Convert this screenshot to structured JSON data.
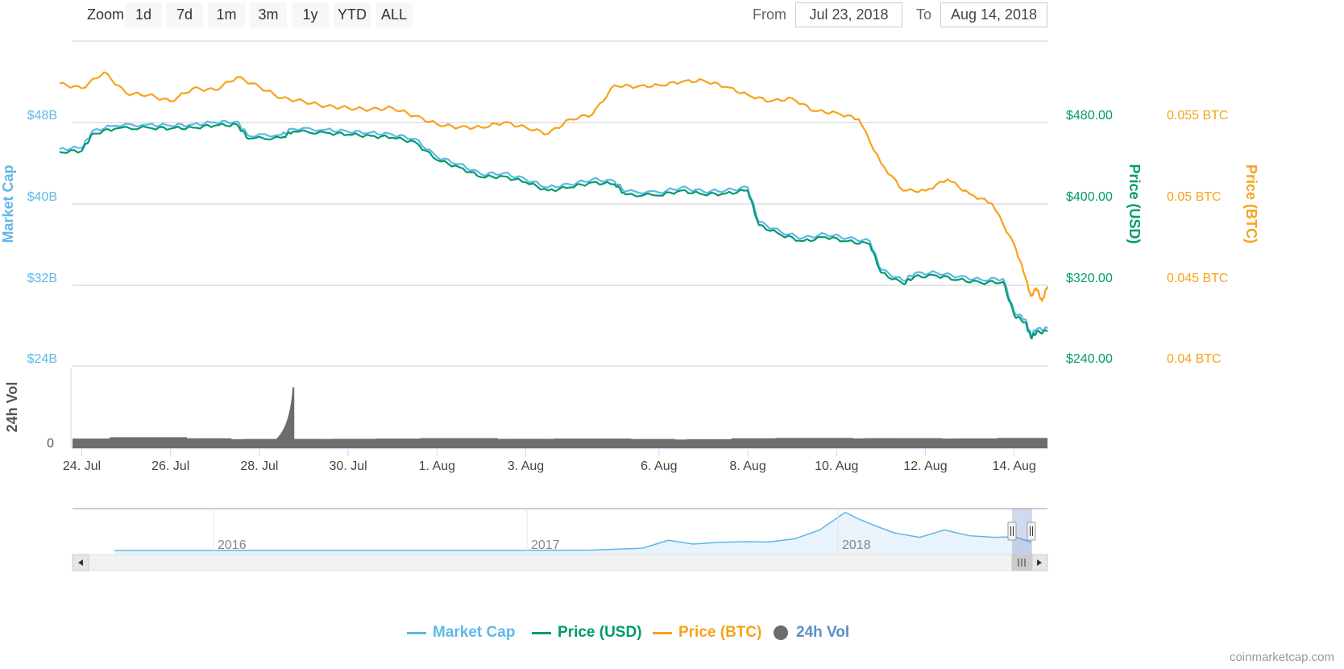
{
  "toolbar": {
    "zoom_label": "Zoom",
    "zoom_buttons": [
      "1d",
      "7d",
      "1m",
      "3m",
      "1y",
      "YTD",
      "ALL"
    ],
    "from_label": "From",
    "from_value": "Jul 23, 2018",
    "to_label": "To",
    "to_value": "Aug 14, 2018"
  },
  "colors": {
    "market_cap": "#5eb8e8",
    "price_usd": "#009a6e",
    "price_btc": "#f7a21b",
    "volume": "#6d6d6d",
    "grid": "#e6e6e6"
  },
  "legend": [
    "Market Cap",
    "Price (USD)",
    "Price (BTC)",
    "24h Vol"
  ],
  "credits": "coinmarketcap.com",
  "chart_data": {
    "type": "line",
    "x_ticks": [
      "24. Jul",
      "26. Jul",
      "28. Jul",
      "30. Jul",
      "1. Aug",
      "3. Aug",
      "6. Aug",
      "8. Aug",
      "10. Aug",
      "12. Aug",
      "14. Aug"
    ],
    "axes": {
      "market_cap": {
        "label": "Market Cap",
        "ticks": [
          "$48B",
          "$40B",
          "$32B",
          "$24B"
        ],
        "range": [
          24,
          48
        ]
      },
      "price_usd": {
        "label": "Price (USD)",
        "ticks": [
          "$480.00",
          "$400.00",
          "$320.00",
          "$240.00"
        ],
        "range": [
          240,
          480
        ]
      },
      "price_btc": {
        "label": "Price (BTC)",
        "ticks": [
          "0.055 BTC",
          "0.05 BTC",
          "0.045 BTC",
          "0.04 BTC"
        ],
        "range": [
          0.04,
          0.055
        ]
      },
      "volume": {
        "label": "24h Vol",
        "ticks": [
          "0"
        ]
      }
    },
    "series": [
      {
        "name": "Price (BTC)",
        "axis": "price_btc",
        "points": [
          [
            "2018-07-23T12",
            0.0574
          ],
          [
            "2018-07-24T00",
            0.0571
          ],
          [
            "2018-07-24T12",
            0.0581
          ],
          [
            "2018-07-25T00",
            0.0568
          ],
          [
            "2018-07-25T12",
            0.0567
          ],
          [
            "2018-07-26T00",
            0.0563
          ],
          [
            "2018-07-26T12",
            0.0571
          ],
          [
            "2018-07-27T00",
            0.057
          ],
          [
            "2018-07-27T12",
            0.0578
          ],
          [
            "2018-07-28T00",
            0.0572
          ],
          [
            "2018-07-28T12",
            0.0565
          ],
          [
            "2018-07-29T00",
            0.0563
          ],
          [
            "2018-07-29T12",
            0.056
          ],
          [
            "2018-07-30T00",
            0.0559
          ],
          [
            "2018-07-30T12",
            0.0558
          ],
          [
            "2018-07-31T00",
            0.0559
          ],
          [
            "2018-07-31T12",
            0.0554
          ],
          [
            "2018-08-01T00",
            0.0549
          ],
          [
            "2018-08-01T12",
            0.0547
          ],
          [
            "2018-08-02T00",
            0.0547
          ],
          [
            "2018-08-02T12",
            0.055
          ],
          [
            "2018-08-03T00",
            0.0547
          ],
          [
            "2018-08-03T12",
            0.0543
          ],
          [
            "2018-08-04T00",
            0.0552
          ],
          [
            "2018-08-04T12",
            0.0555
          ],
          [
            "2018-08-05T00",
            0.0573
          ],
          [
            "2018-08-05T12",
            0.0572
          ],
          [
            "2018-08-06T00",
            0.0573
          ],
          [
            "2018-08-06T12",
            0.0575
          ],
          [
            "2018-08-07T00",
            0.0576
          ],
          [
            "2018-08-07T12",
            0.0572
          ],
          [
            "2018-08-08T00",
            0.0567
          ],
          [
            "2018-08-08T12",
            0.0563
          ],
          [
            "2018-08-09T00",
            0.0565
          ],
          [
            "2018-08-09T12",
            0.0557
          ],
          [
            "2018-08-10T00",
            0.0556
          ],
          [
            "2018-08-10T12",
            0.0552
          ],
          [
            "2018-08-11T00",
            0.0525
          ],
          [
            "2018-08-11T12",
            0.0508
          ],
          [
            "2018-08-12T00",
            0.0508
          ],
          [
            "2018-08-12T12",
            0.0515
          ],
          [
            "2018-08-13T00",
            0.0506
          ],
          [
            "2018-08-13T12",
            0.05
          ],
          [
            "2018-08-14T00",
            0.0475
          ],
          [
            "2018-08-14T06",
            0.0455
          ],
          [
            "2018-08-14T09",
            0.0443
          ],
          [
            "2018-08-14T12",
            0.0448
          ],
          [
            "2018-08-14T15",
            0.044
          ],
          [
            "2018-08-14T18",
            0.0449
          ]
        ]
      },
      {
        "name": "Market Cap",
        "axis": "market_cap",
        "points": [
          [
            "2018-07-23T12",
            45.4
          ],
          [
            "2018-07-24T00",
            45.5
          ],
          [
            "2018-07-24T06",
            47.2
          ],
          [
            "2018-07-24T18",
            47.7
          ],
          [
            "2018-07-25T12",
            47.8
          ],
          [
            "2018-07-26T00",
            47.7
          ],
          [
            "2018-07-26T12",
            47.8
          ],
          [
            "2018-07-27T00",
            48.0
          ],
          [
            "2018-07-27T12",
            48.1
          ],
          [
            "2018-07-27T18",
            46.7
          ],
          [
            "2018-07-28T12",
            46.8
          ],
          [
            "2018-07-28T18",
            47.4
          ],
          [
            "2018-07-29T12",
            47.3
          ],
          [
            "2018-07-30T00",
            47.1
          ],
          [
            "2018-07-30T12",
            47.0
          ],
          [
            "2018-07-31T00",
            46.8
          ],
          [
            "2018-07-31T12",
            46.4
          ],
          [
            "2018-08-01T00",
            44.6
          ],
          [
            "2018-08-01T12",
            43.9
          ],
          [
            "2018-08-02T00",
            42.9
          ],
          [
            "2018-08-02T12",
            43.0
          ],
          [
            "2018-08-03T00",
            42.4
          ],
          [
            "2018-08-03T12",
            41.6
          ],
          [
            "2018-08-04T00",
            41.9
          ],
          [
            "2018-08-04T12",
            42.4
          ],
          [
            "2018-08-05T00",
            42.2
          ],
          [
            "2018-08-05T06",
            41.2
          ],
          [
            "2018-08-06T00",
            41.1
          ],
          [
            "2018-08-06T12",
            41.6
          ],
          [
            "2018-08-07T00",
            41.2
          ],
          [
            "2018-08-07T12",
            41.3
          ],
          [
            "2018-08-08T00",
            41.6
          ],
          [
            "2018-08-08T06",
            38.2
          ],
          [
            "2018-08-08T18",
            37.2
          ],
          [
            "2018-08-09T06",
            36.6
          ],
          [
            "2018-08-09T18",
            37.0
          ],
          [
            "2018-08-10T06",
            36.6
          ],
          [
            "2018-08-10T18",
            36.3
          ],
          [
            "2018-08-11T00",
            33.5
          ],
          [
            "2018-08-11T12",
            32.4
          ],
          [
            "2018-08-11T18",
            33.1
          ],
          [
            "2018-08-12T06",
            33.2
          ],
          [
            "2018-08-12T18",
            32.8
          ],
          [
            "2018-08-13T06",
            32.5
          ],
          [
            "2018-08-13T18",
            32.6
          ],
          [
            "2018-08-14T00",
            29.3
          ],
          [
            "2018-08-14T06",
            28.6
          ],
          [
            "2018-08-14T09",
            27.1
          ],
          [
            "2018-08-14T12",
            27.6
          ],
          [
            "2018-08-14T18",
            27.7
          ]
        ]
      },
      {
        "name": "Price (USD)",
        "axis": "price_usd",
        "points": [
          [
            "2018-07-23T12",
            451.0
          ],
          [
            "2018-07-24T00",
            452.0
          ],
          [
            "2018-07-24T06",
            469.0
          ],
          [
            "2018-07-24T18",
            474.0
          ],
          [
            "2018-07-25T12",
            475.0
          ],
          [
            "2018-07-26T00",
            474.0
          ],
          [
            "2018-07-26T12",
            475.0
          ],
          [
            "2018-07-27T00",
            477.0
          ],
          [
            "2018-07-27T12",
            478.0
          ],
          [
            "2018-07-27T18",
            464.0
          ],
          [
            "2018-07-28T12",
            465.0
          ],
          [
            "2018-07-28T18",
            471.0
          ],
          [
            "2018-07-29T12",
            470.0
          ],
          [
            "2018-07-30T00",
            468.0
          ],
          [
            "2018-07-30T12",
            467.0
          ],
          [
            "2018-07-31T00",
            465.0
          ],
          [
            "2018-07-31T12",
            461.0
          ],
          [
            "2018-08-01T00",
            443.0
          ],
          [
            "2018-08-01T12",
            436.0
          ],
          [
            "2018-08-02T00",
            426.0
          ],
          [
            "2018-08-02T12",
            427.0
          ],
          [
            "2018-08-03T00",
            421.0
          ],
          [
            "2018-08-03T12",
            413.0
          ],
          [
            "2018-08-04T00",
            416.0
          ],
          [
            "2018-08-04T12",
            421.0
          ],
          [
            "2018-08-05T00",
            419.0
          ],
          [
            "2018-08-05T06",
            409.0
          ],
          [
            "2018-08-06T00",
            408.0
          ],
          [
            "2018-08-06T12",
            413.0
          ],
          [
            "2018-08-07T00",
            409.0
          ],
          [
            "2018-08-07T12",
            410.0
          ],
          [
            "2018-08-08T00",
            413.0
          ],
          [
            "2018-08-08T06",
            379.0
          ],
          [
            "2018-08-08T18",
            369.0
          ],
          [
            "2018-08-09T06",
            363.0
          ],
          [
            "2018-08-09T18",
            367.0
          ],
          [
            "2018-08-10T06",
            363.0
          ],
          [
            "2018-08-10T18",
            360.0
          ],
          [
            "2018-08-11T00",
            332.0
          ],
          [
            "2018-08-11T12",
            321.0
          ],
          [
            "2018-08-11T18",
            328.0
          ],
          [
            "2018-08-12T06",
            329.0
          ],
          [
            "2018-08-12T18",
            325.0
          ],
          [
            "2018-08-13T06",
            322.0
          ],
          [
            "2018-08-13T18",
            323.0
          ],
          [
            "2018-08-14T00",
            290.0
          ],
          [
            "2018-08-14T06",
            283.0
          ],
          [
            "2018-08-14T09",
            268.0
          ],
          [
            "2018-08-14T12",
            273.0
          ],
          [
            "2018-08-14T18",
            274.0
          ]
        ]
      },
      {
        "name": "24h Vol",
        "type": "column",
        "axis": "volume",
        "points": [
          [
            "2018-07-24",
            0.35
          ],
          [
            "2018-07-25",
            0.45
          ],
          [
            "2018-07-26",
            0.37
          ],
          [
            "2018-07-27",
            0.3
          ],
          [
            "2018-07-28",
            0.32
          ],
          [
            "2018-07-28T12",
            4.5
          ],
          [
            "2018-07-29",
            0.32
          ],
          [
            "2018-07-30",
            0.33
          ],
          [
            "2018-07-31",
            0.35
          ],
          [
            "2018-08-01",
            0.38
          ],
          [
            "2018-08-02",
            0.33
          ],
          [
            "2018-08-03",
            0.33
          ],
          [
            "2018-08-04",
            0.35
          ],
          [
            "2018-08-05",
            0.32
          ],
          [
            "2018-08-06",
            0.28
          ],
          [
            "2018-08-07",
            0.3
          ],
          [
            "2018-08-08",
            0.37
          ],
          [
            "2018-08-09",
            0.4
          ],
          [
            "2018-08-10",
            0.36
          ],
          [
            "2018-08-11",
            0.38
          ],
          [
            "2018-08-12",
            0.35
          ],
          [
            "2018-08-13",
            0.36
          ],
          [
            "2018-08-14",
            0.4
          ]
        ]
      }
    ],
    "navigator": {
      "labels": [
        "2016",
        "2017",
        "2018"
      ],
      "series": "Market Cap",
      "points": [
        [
          "2015-08",
          0.4
        ],
        [
          "2016-01",
          0.5
        ],
        [
          "2016-06",
          0.9
        ],
        [
          "2016-12",
          0.8
        ],
        [
          "2017-03",
          1.5
        ],
        [
          "2017-05",
          8
        ],
        [
          "2017-06",
          35
        ],
        [
          "2017-07",
          22
        ],
        [
          "2017-08",
          28
        ],
        [
          "2017-09",
          30
        ],
        [
          "2017-10",
          29
        ],
        [
          "2017-11",
          40
        ],
        [
          "2017-12",
          70
        ],
        [
          "2018-01",
          130
        ],
        [
          "2018-01-15",
          110
        ],
        [
          "2018-02",
          90
        ],
        [
          "2018-03",
          60
        ],
        [
          "2018-04",
          45
        ],
        [
          "2018-04-25",
          65
        ],
        [
          "2018-05",
          70
        ],
        [
          "2018-06",
          50
        ],
        [
          "2018-07",
          45
        ],
        [
          "2018-07-25",
          47
        ],
        [
          "2018-08-14",
          28
        ]
      ]
    }
  }
}
